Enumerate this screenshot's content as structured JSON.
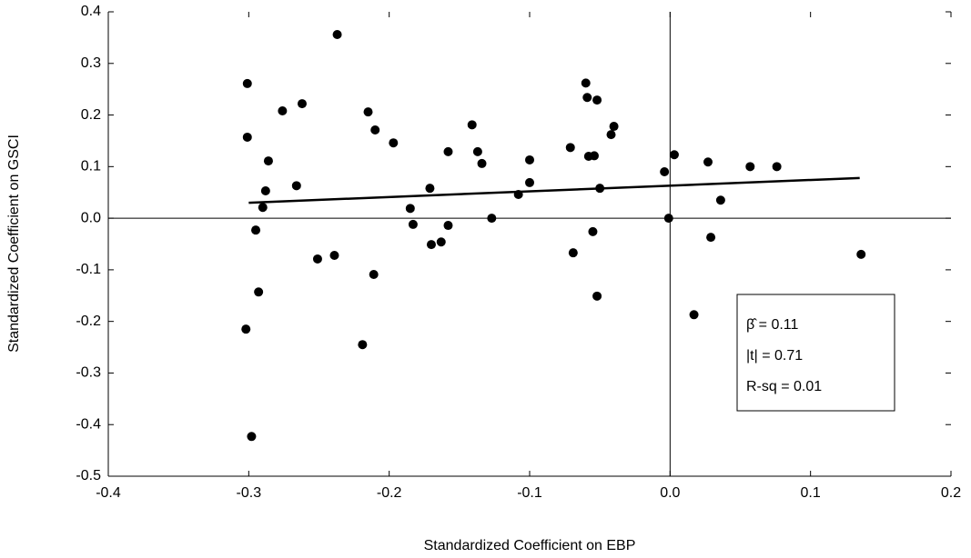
{
  "chart_data": {
    "type": "scatter",
    "x_label": "Standardized Coefficient on EBP",
    "y_label": "Standardized Coefficient on GSCI",
    "xlim": [
      -0.4,
      0.2
    ],
    "ylim": [
      -0.5,
      0.4
    ],
    "xticks": [
      -0.4,
      -0.3,
      -0.2,
      -0.1,
      {
        "value": 0,
        "label": "0.0"
      },
      0.1,
      0.2
    ],
    "yticks": [
      -0.5,
      -0.4,
      -0.3,
      -0.2,
      -0.1,
      {
        "value": 0,
        "label": "0.0"
      },
      0.1,
      0.2,
      0.3,
      0.4
    ],
    "color": "#000000",
    "x": [
      -0.301,
      -0.301,
      -0.302,
      -0.298,
      -0.295,
      -0.293,
      -0.29,
      -0.288,
      -0.286,
      -0.276,
      -0.266,
      -0.262,
      -0.251,
      -0.239,
      -0.21,
      -0.211,
      -0.219,
      -0.215,
      -0.237,
      -0.197,
      -0.185,
      -0.183,
      -0.17,
      -0.171,
      -0.163,
      -0.158,
      -0.158,
      -0.141,
      -0.137,
      -0.134,
      -0.127,
      -0.108,
      -0.1,
      -0.1,
      -0.071,
      -0.069,
      -0.06,
      -0.059,
      -0.058,
      -0.052,
      -0.055,
      -0.054,
      -0.052,
      -0.05,
      -0.042,
      -0.04,
      -0.004,
      -0.001,
      0.003,
      0.017,
      0.027,
      0.029,
      0.036,
      0.057,
      0.076,
      0.136
    ],
    "y": [
      0.261,
      0.157,
      -0.215,
      -0.423,
      -0.023,
      -0.143,
      0.021,
      0.053,
      0.111,
      0.208,
      0.063,
      0.222,
      -0.079,
      -0.072,
      0.171,
      -0.109,
      -0.245,
      0.206,
      0.356,
      0.146,
      0.019,
      -0.012,
      -0.051,
      0.058,
      -0.046,
      -0.014,
      0.129,
      0.181,
      0.129,
      0.106,
      0.0,
      0.046,
      0.069,
      0.113,
      0.137,
      -0.067,
      0.262,
      0.234,
      0.12,
      0.229,
      -0.026,
      0.121,
      -0.151,
      0.058,
      0.162,
      0.178,
      0.09,
      0.0,
      0.123,
      -0.187,
      0.109,
      -0.037,
      0.035,
      0.1,
      0.1,
      -0.07
    ],
    "fit_line": {
      "x": [
        -0.3,
        0.135
      ],
      "y": [
        0.03,
        0.078
      ]
    },
    "annotations": [
      "β̂ = 0.11",
      "|t| = 0.71",
      "R-sq = 0.01"
    ]
  }
}
